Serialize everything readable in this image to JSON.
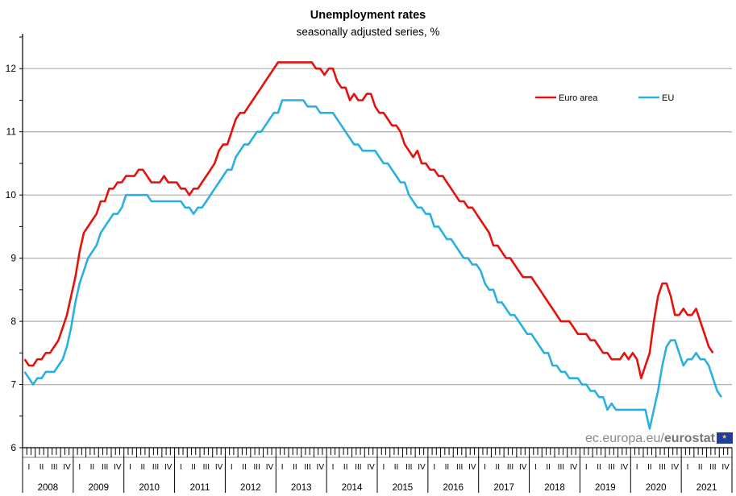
{
  "chart_data": {
    "type": "line",
    "title": "Unemployment rates",
    "subtitle": "seasonally adjusted series, %",
    "ylim": [
      6,
      12.5
    ],
    "yticks": [
      "6",
      "7",
      "8",
      "9",
      "10",
      "11",
      "12"
    ],
    "grid": true,
    "legend_position": "top-right",
    "quarter_labels": [
      "I",
      "II",
      "III",
      "IV"
    ],
    "years": [
      "2008",
      "2009",
      "2010",
      "2011",
      "2012",
      "2013",
      "2014",
      "2015",
      "2016",
      "2017",
      "2018",
      "2019",
      "2020",
      "2021"
    ],
    "x_start": "2008-01",
    "x_end": "2021-08",
    "series": [
      {
        "name": "Euro area",
        "color": "#e3120b",
        "values": [
          7.4,
          7.3,
          7.3,
          7.4,
          7.4,
          7.5,
          7.5,
          7.6,
          7.7,
          7.9,
          8.1,
          8.4,
          8.7,
          9.1,
          9.4,
          9.5,
          9.6,
          9.7,
          9.9,
          9.9,
          10.1,
          10.1,
          10.2,
          10.2,
          10.3,
          10.3,
          10.3,
          10.4,
          10.4,
          10.3,
          10.2,
          10.2,
          10.2,
          10.3,
          10.2,
          10.2,
          10.2,
          10.1,
          10.1,
          10.0,
          10.1,
          10.1,
          10.2,
          10.3,
          10.4,
          10.5,
          10.7,
          10.8,
          10.8,
          11.0,
          11.2,
          11.3,
          11.3,
          11.4,
          11.5,
          11.6,
          11.7,
          11.8,
          11.9,
          12.0,
          12.1,
          12.1,
          12.1,
          12.1,
          12.1,
          12.1,
          12.1,
          12.1,
          12.1,
          12.0,
          12.0,
          11.9,
          12.0,
          12.0,
          11.8,
          11.7,
          11.7,
          11.5,
          11.6,
          11.5,
          11.5,
          11.6,
          11.6,
          11.4,
          11.3,
          11.3,
          11.2,
          11.1,
          11.1,
          11.0,
          10.8,
          10.7,
          10.6,
          10.7,
          10.5,
          10.5,
          10.4,
          10.4,
          10.3,
          10.3,
          10.2,
          10.1,
          10.0,
          9.9,
          9.9,
          9.8,
          9.8,
          9.7,
          9.6,
          9.5,
          9.4,
          9.2,
          9.2,
          9.1,
          9.0,
          9.0,
          8.9,
          8.8,
          8.7,
          8.7,
          8.7,
          8.6,
          8.5,
          8.4,
          8.3,
          8.2,
          8.1,
          8.0,
          8.0,
          8.0,
          7.9,
          7.8,
          7.8,
          7.8,
          7.7,
          7.7,
          7.6,
          7.5,
          7.5,
          7.4,
          7.4,
          7.4,
          7.5,
          7.4,
          7.5,
          7.4,
          7.1,
          7.3,
          7.5,
          8.0,
          8.4,
          8.6,
          8.6,
          8.4,
          8.1,
          8.1,
          8.2,
          8.1,
          8.1,
          8.2,
          8.0,
          7.8,
          7.6,
          7.5
        ]
      },
      {
        "name": "EU",
        "color": "#2ab0e0",
        "values": [
          7.2,
          7.1,
          7.0,
          7.1,
          7.1,
          7.2,
          7.2,
          7.2,
          7.3,
          7.4,
          7.6,
          7.9,
          8.3,
          8.6,
          8.8,
          9.0,
          9.1,
          9.2,
          9.4,
          9.5,
          9.6,
          9.7,
          9.7,
          9.8,
          10.0,
          10.0,
          10.0,
          10.0,
          10.0,
          10.0,
          9.9,
          9.9,
          9.9,
          9.9,
          9.9,
          9.9,
          9.9,
          9.9,
          9.8,
          9.8,
          9.7,
          9.8,
          9.8,
          9.9,
          10.0,
          10.1,
          10.2,
          10.3,
          10.4,
          10.4,
          10.6,
          10.7,
          10.8,
          10.8,
          10.9,
          11.0,
          11.0,
          11.1,
          11.2,
          11.3,
          11.3,
          11.5,
          11.5,
          11.5,
          11.5,
          11.5,
          11.5,
          11.4,
          11.4,
          11.4,
          11.3,
          11.3,
          11.3,
          11.3,
          11.2,
          11.1,
          11.0,
          10.9,
          10.8,
          10.8,
          10.7,
          10.7,
          10.7,
          10.7,
          10.6,
          10.5,
          10.5,
          10.4,
          10.3,
          10.2,
          10.2,
          10.0,
          9.9,
          9.8,
          9.8,
          9.7,
          9.7,
          9.5,
          9.5,
          9.4,
          9.3,
          9.3,
          9.2,
          9.1,
          9.0,
          9.0,
          8.9,
          8.9,
          8.8,
          8.6,
          8.5,
          8.5,
          8.3,
          8.3,
          8.2,
          8.1,
          8.1,
          8.0,
          7.9,
          7.8,
          7.8,
          7.7,
          7.6,
          7.5,
          7.5,
          7.3,
          7.3,
          7.2,
          7.2,
          7.1,
          7.1,
          7.1,
          7.0,
          7.0,
          6.9,
          6.9,
          6.8,
          6.8,
          6.6,
          6.7,
          6.6,
          6.6,
          6.6,
          6.6,
          6.6,
          6.6,
          6.6,
          6.6,
          6.3,
          6.6,
          6.9,
          7.3,
          7.6,
          7.7,
          7.7,
          7.5,
          7.3,
          7.4,
          7.4,
          7.5,
          7.4,
          7.4,
          7.3,
          7.1,
          6.9,
          6.8
        ]
      }
    ]
  },
  "source": {
    "prefix": "ec.europa.eu/",
    "brand": "eurostat"
  }
}
